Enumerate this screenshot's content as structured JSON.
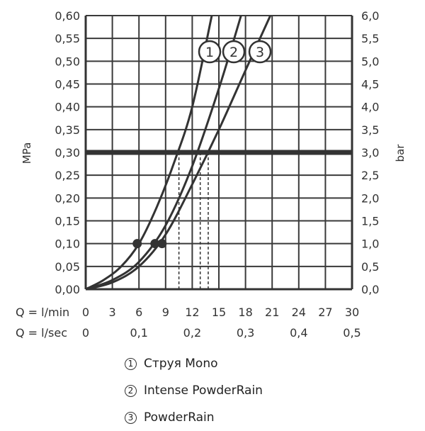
{
  "chart_data": {
    "type": "line",
    "ylabel_left": "MPa",
    "ylabel_right": "bar",
    "x_row_labels": [
      "Q = l/min",
      "Q = l/sec"
    ],
    "x_lmin_ticks": [
      "0",
      "3",
      "6",
      "9",
      "12",
      "15",
      "18",
      "21",
      "24",
      "27",
      "30"
    ],
    "x_lsec_ticks": [
      "0",
      "0,1",
      "0,2",
      "0,3",
      "0,4",
      "0,5"
    ],
    "y_mpa_ticks": [
      "0,00",
      "0,05",
      "0,10",
      "0,15",
      "0,20",
      "0,25",
      "0,30",
      "0,35",
      "0,40",
      "0,45",
      "0,50",
      "0,55",
      "0,60"
    ],
    "y_bar_ticks": [
      "0,0",
      "0,5",
      "1,0",
      "1,5",
      "2,0",
      "2,5",
      "3,0",
      "3,5",
      "4,0",
      "4,5",
      "5,0",
      "5,5",
      "6,0"
    ],
    "xlim": [
      0,
      30
    ],
    "ylim": [
      0,
      0.6
    ],
    "grid": true,
    "reference_pressure_mpa": 0.3,
    "series": [
      {
        "id": "1",
        "name": "Струя Mono",
        "x": [
          0,
          2,
          4,
          6,
          8,
          10,
          12,
          14.2
        ],
        "y": [
          0,
          0.02,
          0.05,
          0.1,
          0.18,
          0.28,
          0.4,
          0.6
        ],
        "marker_x": 5.8,
        "marker_y": 0.1,
        "flow_at_ref": 10.5
      },
      {
        "id": "2",
        "name": "Intense PowderRain",
        "x": [
          0,
          3,
          6,
          9,
          12,
          15,
          17.5
        ],
        "y": [
          0,
          0.02,
          0.06,
          0.14,
          0.27,
          0.44,
          0.6
        ],
        "marker_x": 7.8,
        "marker_y": 0.1,
        "flow_at_ref": 12.9
      },
      {
        "id": "3",
        "name": "PowderRain",
        "x": [
          0,
          3,
          6,
          9,
          12,
          15,
          18,
          20.8
        ],
        "y": [
          0,
          0.015,
          0.05,
          0.12,
          0.23,
          0.35,
          0.48,
          0.6
        ],
        "marker_x": 8.6,
        "marker_y": 0.1,
        "flow_at_ref": 13.8
      }
    ]
  },
  "legend": {
    "items": [
      {
        "number": "1",
        "label": "Струя Mono"
      },
      {
        "number": "2",
        "label": "Intense PowderRain"
      },
      {
        "number": "3",
        "label": "PowderRain"
      }
    ]
  }
}
